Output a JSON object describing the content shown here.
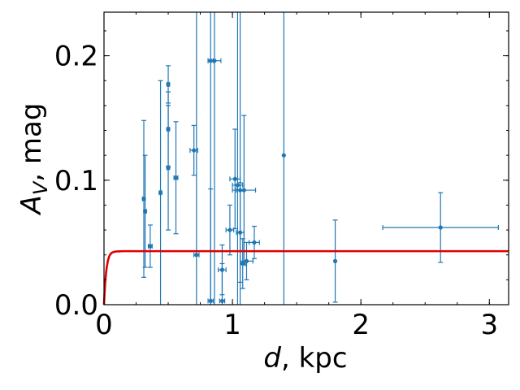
{
  "chart_data": {
    "type": "scatter",
    "title": "",
    "xlabel": {
      "main": "d",
      "rest": ", kpc"
    },
    "ylabel": {
      "main": "A",
      "sub": "V",
      "rest": ", mag"
    },
    "xlim": [
      0,
      3.15
    ],
    "ylim": [
      0,
      0.235
    ],
    "x_ticks": [
      0,
      1,
      2,
      3
    ],
    "x_tick_labels": [
      "0",
      "1",
      "2",
      "3"
    ],
    "y_ticks": [
      0,
      0.1,
      0.2
    ],
    "y_tick_labels": [
      "0.0",
      "0.1",
      "0.2"
    ],
    "x_minor_step": 0.25,
    "y_minor_step": 0.02,
    "grid": false,
    "colors": {
      "points": "#1f77b4",
      "model": "#e00000"
    },
    "points": [
      {
        "x": 0.31,
        "y": 0.085,
        "xerr": 0.01,
        "yerr": 0.063
      },
      {
        "x": 0.32,
        "y": 0.075,
        "xerr": 0.01,
        "yerr": 0.045
      },
      {
        "x": 0.36,
        "y": 0.047,
        "xerr": 0.015,
        "yerr": 0.017
      },
      {
        "x": 0.44,
        "y": 0.09,
        "xerr": 0.01,
        "yerr": 0.09
      },
      {
        "x": 0.5,
        "y": 0.177,
        "xerr": 0.01,
        "yerr": 0.015
      },
      {
        "x": 0.5,
        "y": 0.141,
        "xerr": 0.01,
        "yerr": 0.03
      },
      {
        "x": 0.5,
        "y": 0.11,
        "xerr": 0.01,
        "yerr": 0.05
      },
      {
        "x": 0.56,
        "y": 0.102,
        "xerr": 0.015,
        "yerr": 0.045
      },
      {
        "x": 0.7,
        "y": 0.124,
        "xerr": 0.03,
        "yerr": 0.02
      },
      {
        "x": 0.72,
        "y": 0.04,
        "xerr": 0.02,
        "yerr": 0.2
      },
      {
        "x": 0.83,
        "y": 0.196,
        "xerr": 0.02,
        "yerr": 0.2
      },
      {
        "x": 0.86,
        "y": 0.196,
        "xerr": 0.05,
        "yerr": 0.2
      },
      {
        "x": 0.83,
        "y": 0.003,
        "xerr": 0.02,
        "yerr": 0.09
      },
      {
        "x": 0.92,
        "y": 0.003,
        "xerr": 0.02,
        "yerr": 0.03
      },
      {
        "x": 0.92,
        "y": 0.028,
        "xerr": 0.03,
        "yerr": 0.02
      },
      {
        "x": 0.98,
        "y": 0.06,
        "xerr": 0.03,
        "yerr": 0.02
      },
      {
        "x": 1.02,
        "y": 0.101,
        "xerr": 0.04,
        "yerr": 0.04
      },
      {
        "x": 1.04,
        "y": 0.096,
        "xerr": 0.04,
        "yerr": 0.15
      },
      {
        "x": 1.06,
        "y": 0.092,
        "xerr": 0.03,
        "yerr": 0.16
      },
      {
        "x": 1.09,
        "y": 0.092,
        "xerr": 0.09,
        "yerr": 0.06
      },
      {
        "x": 1.06,
        "y": 0.058,
        "xerr": 0.03,
        "yerr": 0.04
      },
      {
        "x": 1.08,
        "y": 0.033,
        "xerr": 0.02,
        "yerr": 0.02
      },
      {
        "x": 1.11,
        "y": 0.035,
        "xerr": 0.05,
        "yerr": 0.015
      },
      {
        "x": 1.17,
        "y": 0.05,
        "xerr": 0.04,
        "yerr": 0.013
      },
      {
        "x": 1.4,
        "y": 0.12,
        "xerr": 0.0,
        "yerr": 0.3
      },
      {
        "x": 1.8,
        "y": 0.035,
        "xerr": 0.0,
        "yerr": 0.033
      },
      {
        "x": 2.62,
        "y": 0.062,
        "xerr": 0.45,
        "yerr": 0.028
      }
    ],
    "model": {
      "type": "line",
      "saturation_value": 0.043,
      "x": [
        0,
        0.005,
        0.01,
        0.015,
        0.02,
        0.03,
        0.04,
        0.05,
        0.06,
        0.08,
        0.1,
        0.12,
        0.15,
        0.2,
        0.3,
        0.5,
        1.0,
        1.5,
        2.0,
        2.5,
        3.0,
        3.15
      ],
      "y": [
        0,
        0.0105,
        0.0185,
        0.0245,
        0.029,
        0.0352,
        0.0387,
        0.0406,
        0.0417,
        0.0425,
        0.0428,
        0.0429,
        0.043,
        0.043,
        0.043,
        0.043,
        0.043,
        0.043,
        0.043,
        0.043,
        0.043,
        0.043
      ]
    }
  }
}
